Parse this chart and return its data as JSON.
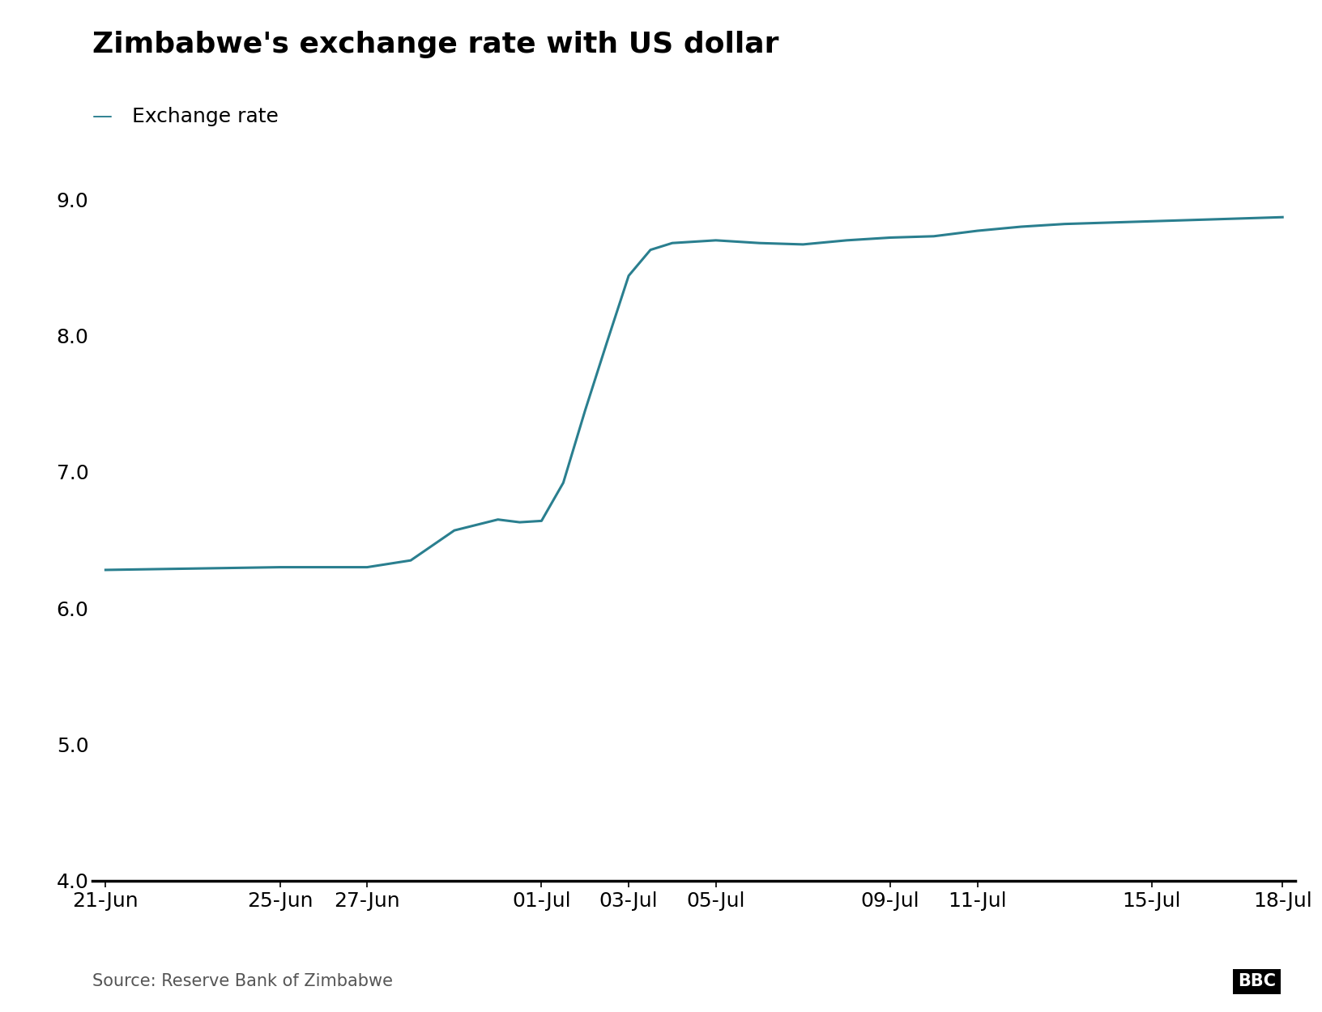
{
  "title": "Zimbabwe's exchange rate with US dollar",
  "legend_label": "Exchange rate",
  "source": "Source: Reserve Bank of Zimbabwe",
  "line_color": "#2a7f8f",
  "line_width": 2.2,
  "background_color": "#ffffff",
  "x_labels": [
    "21-Jun",
    "25-Jun",
    "27-Jun",
    "01-Jul",
    "03-Jul",
    "05-Jul",
    "09-Jul",
    "11-Jul",
    "15-Jul",
    "18-Jul"
  ],
  "x_values": [
    0,
    4,
    6,
    10,
    12,
    14,
    18,
    20,
    24,
    27
  ],
  "y_data": [
    [
      0,
      6.28
    ],
    [
      4,
      6.3
    ],
    [
      6,
      6.3
    ],
    [
      7,
      6.35
    ],
    [
      8,
      6.57
    ],
    [
      9,
      6.65
    ],
    [
      9.5,
      6.63
    ],
    [
      10,
      6.64
    ],
    [
      10.5,
      6.92
    ],
    [
      11,
      7.45
    ],
    [
      11.5,
      7.95
    ],
    [
      12,
      8.44
    ],
    [
      12.5,
      8.63
    ],
    [
      13,
      8.68
    ],
    [
      14,
      8.7
    ],
    [
      15,
      8.68
    ],
    [
      16,
      8.67
    ],
    [
      17,
      8.7
    ],
    [
      18,
      8.72
    ],
    [
      19,
      8.73
    ],
    [
      20,
      8.77
    ],
    [
      21,
      8.8
    ],
    [
      22,
      8.82
    ],
    [
      23,
      8.83
    ],
    [
      24,
      8.84
    ],
    [
      25,
      8.85
    ],
    [
      26,
      8.86
    ],
    [
      27,
      8.87
    ]
  ],
  "ylim": [
    4.0,
    9.35
  ],
  "yticks": [
    4.0,
    5.0,
    6.0,
    7.0,
    8.0,
    9.0
  ],
  "title_fontsize": 26,
  "legend_fontsize": 18,
  "tick_fontsize": 18,
  "source_fontsize": 15
}
